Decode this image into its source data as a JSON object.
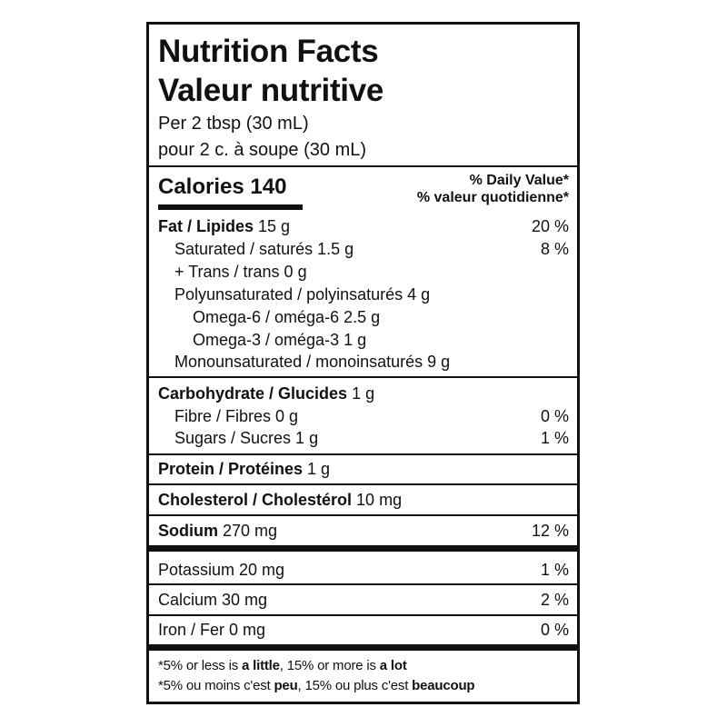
{
  "title_en": "Nutrition Facts",
  "title_fr": "Valeur nutritive",
  "serving_en": "Per 2 tbsp (30 mL)",
  "serving_fr": "pour 2 c. à soupe (30 mL)",
  "calories": "Calories 140",
  "dv_en": "% Daily Value*",
  "dv_fr": "% valeur quotidienne*",
  "rows": [
    {
      "bold": "Fat / Lipides",
      "rest": " 15 g",
      "dv": "20 %"
    },
    {
      "bold": "",
      "rest": "Saturated / saturés 1.5 g",
      "dv": "8 %"
    },
    {
      "bold": "",
      "rest": "+ Trans / trans 0 g",
      "dv": ""
    },
    {
      "bold": "",
      "rest": "Polyunsaturated / polyinsaturés 4 g",
      "dv": ""
    },
    {
      "bold": "",
      "rest": "Omega-6 / oméga-6 2.5 g",
      "dv": ""
    },
    {
      "bold": "",
      "rest": "Omega-3 / oméga-3 1 g",
      "dv": ""
    },
    {
      "bold": "",
      "rest": "Monounsaturated / monoinsaturés 9 g",
      "dv": ""
    },
    {
      "bold": "Carbohydrate / Glucides",
      "rest": " 1 g",
      "dv": ""
    },
    {
      "bold": "",
      "rest": "Fibre / Fibres 0 g",
      "dv": "0 %"
    },
    {
      "bold": "",
      "rest": "Sugars / Sucres 1 g",
      "dv": "1 %"
    },
    {
      "bold": "Protein / Protéines",
      "rest": " 1 g",
      "dv": ""
    },
    {
      "bold": "Cholesterol / Cholestérol",
      "rest": " 10 mg",
      "dv": ""
    },
    {
      "bold": "Sodium",
      "rest": " 270 mg",
      "dv": "12 %"
    },
    {
      "bold": "",
      "rest": "Potassium 20 mg",
      "dv": "1 %"
    },
    {
      "bold": "",
      "rest": "Calcium 30 mg",
      "dv": "2 %"
    },
    {
      "bold": "",
      "rest": "Iron / Fer 0 mg",
      "dv": "0 %"
    }
  ],
  "footnote_en": {
    "a": "*5% or less is ",
    "b": "a little",
    "c": ", 15% or more is ",
    "d": "a lot"
  },
  "footnote_fr": {
    "a": "*5% ou moins c'est ",
    "b": "peu",
    "c": ", 15% ou plus c'est ",
    "d": "beaucoup"
  }
}
